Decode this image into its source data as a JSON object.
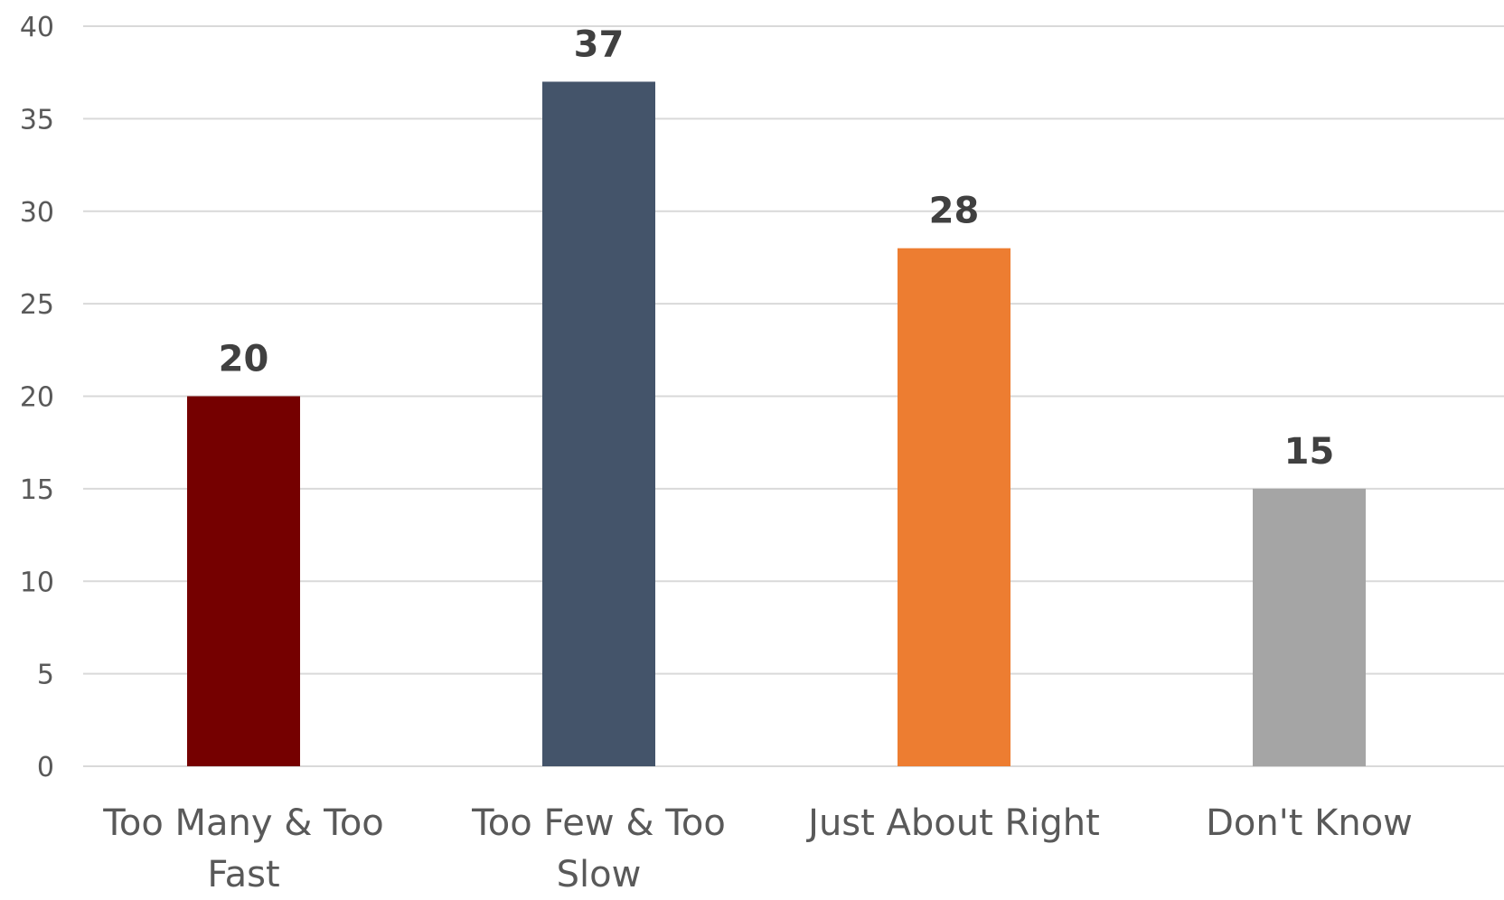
{
  "chart_data": {
    "type": "bar",
    "title": "",
    "xlabel": "",
    "ylabel": "",
    "categories": [
      [
        "Too Many & Too",
        "Fast"
      ],
      [
        "Too Few & Too",
        "Slow"
      ],
      [
        "Just About Right"
      ],
      [
        "Don't Know"
      ]
    ],
    "values": [
      20,
      37,
      28,
      15
    ],
    "data_labels": [
      "20",
      "37",
      "28",
      "15"
    ],
    "bar_colors": [
      "#750000",
      "#44546a",
      "#ed7d31",
      "#a5a5a5"
    ],
    "ylim": [
      0,
      40
    ],
    "yticks": [
      0,
      5,
      10,
      15,
      20,
      25,
      30,
      35,
      40
    ],
    "grid": true,
    "legend": "none"
  }
}
